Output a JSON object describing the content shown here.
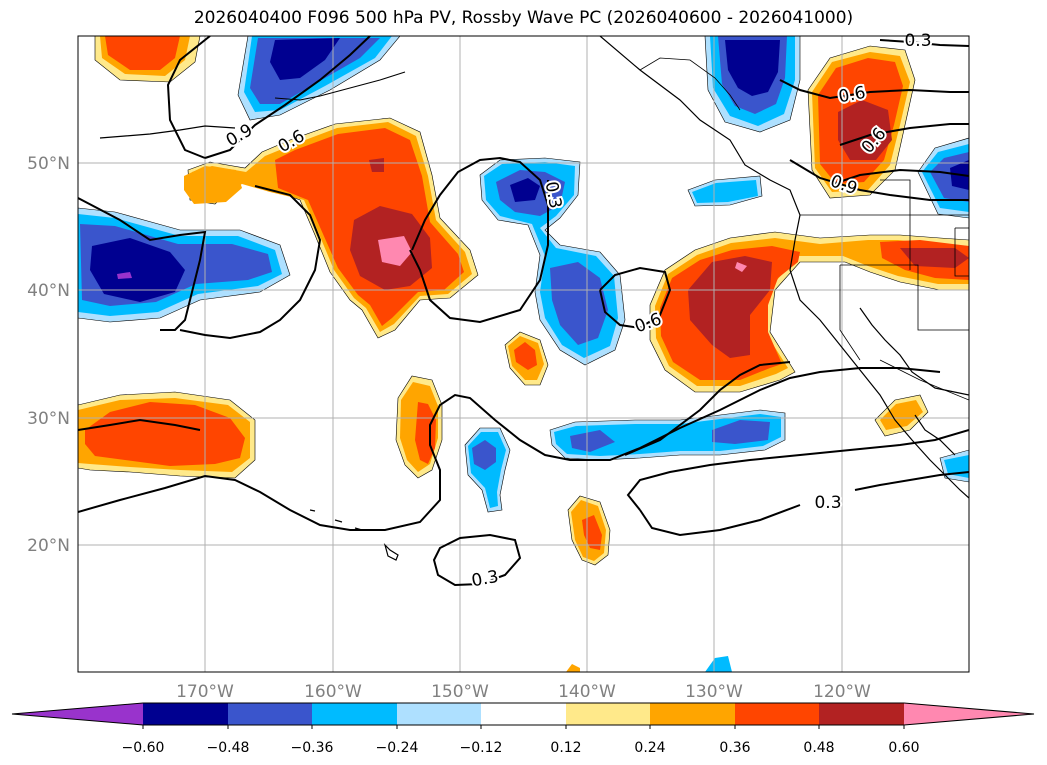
{
  "map": {
    "title": "2026040400 F096 500 hPa PV, Rossby Wave PC (2026040600 - 2026041000)",
    "lat_labels": [
      "50°N",
      "40°N",
      "30°N",
      "20°N"
    ],
    "lon_labels": [
      "170°W",
      "160°W",
      "150°W",
      "140°W",
      "130°W",
      "120°W"
    ],
    "contour_labels": [
      "0.3",
      "0.9",
      "0.6",
      "0.3",
      "0.6",
      "0.6",
      "0.9",
      "0.6",
      "0.3",
      "0.3"
    ]
  },
  "colorbar": {
    "ticks": [
      "−0.60",
      "−0.48",
      "−0.36",
      "−0.24",
      "−0.12",
      "0.12",
      "0.24",
      "0.36",
      "0.48",
      "0.60"
    ],
    "colors": [
      "#9933cc",
      "#000090",
      "#3a55cc",
      "#00bbff",
      "#aee0ff",
      "#ffffff",
      "#ffe98a",
      "#ffa500",
      "#ff4500",
      "#b22222",
      "#ff88b0"
    ]
  },
  "colors": {
    "neg_outer": "#aee0ff",
    "neg_mid": "#00bbff",
    "neg_inner": "#3a55cc",
    "neg_core": "#000090",
    "pos_outer": "#ffe98a",
    "pos_mid": "#ffa500",
    "pos_inner": "#ff4500",
    "pos_core": "#b22222",
    "pos_peak": "#ff88b0"
  }
}
